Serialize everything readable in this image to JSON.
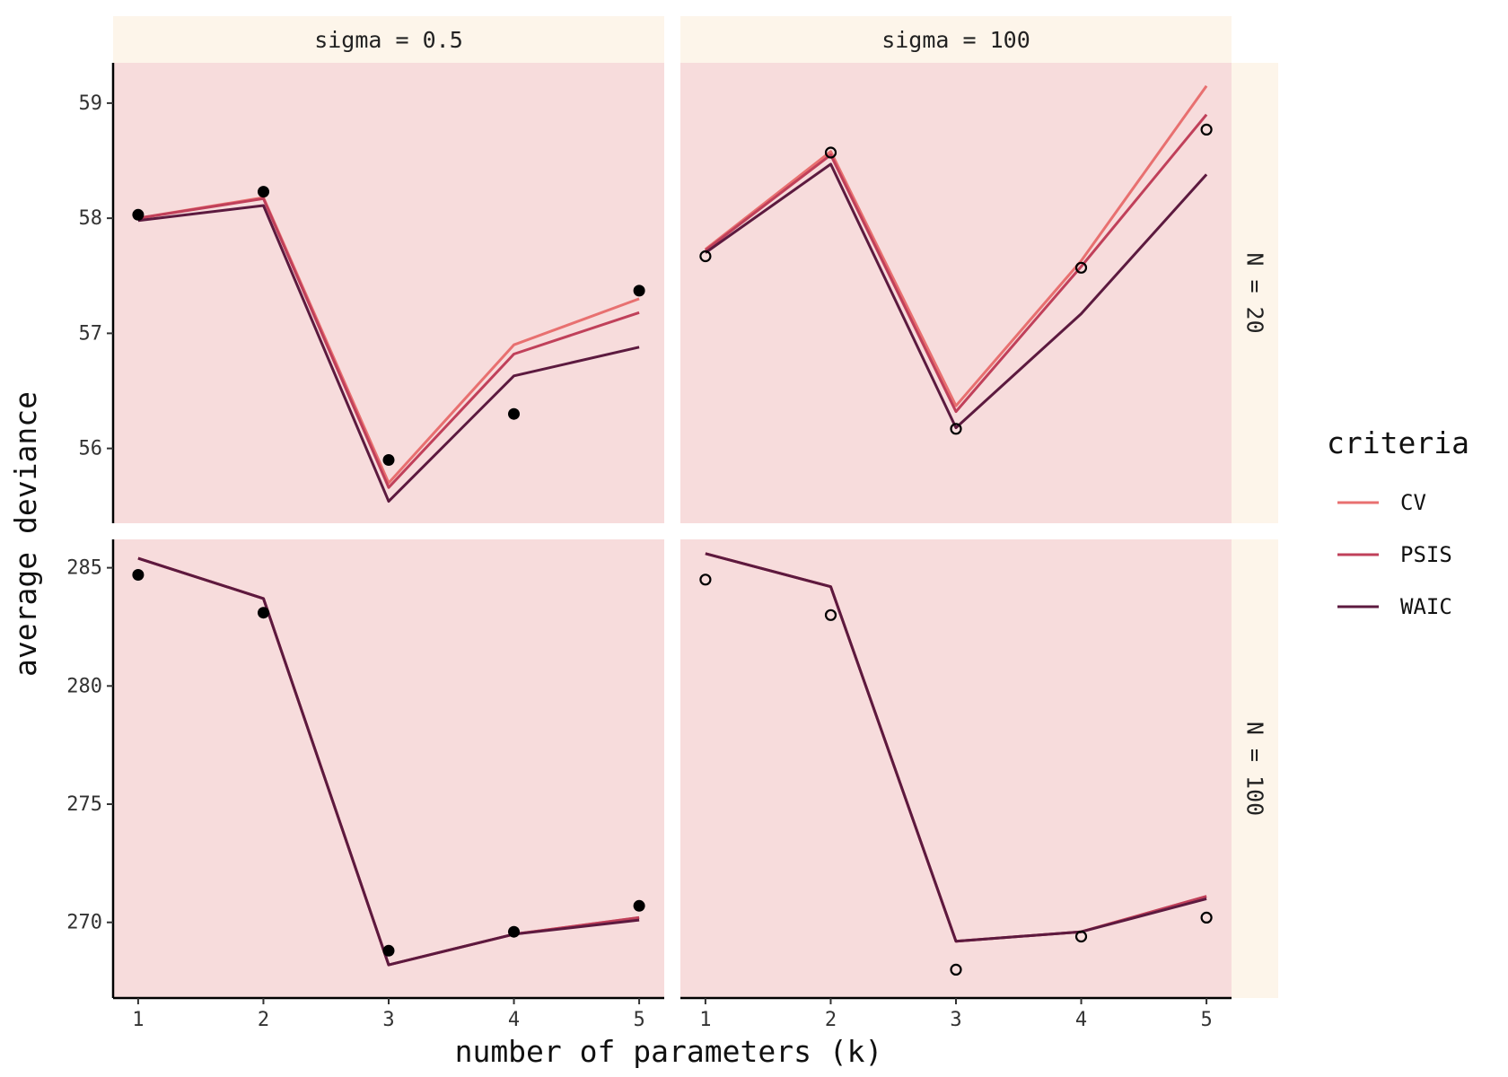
{
  "chart_data": {
    "type": "line",
    "facet_cols": [
      {
        "label": "sigma = 0.5",
        "point_style": "filled"
      },
      {
        "label": "sigma = 100",
        "point_style": "open"
      }
    ],
    "facet_rows": [
      {
        "label": "N = 20",
        "ylim": [
          55.35,
          59.35
        ],
        "yticks": [
          56,
          57,
          58,
          59
        ]
      },
      {
        "label": "N = 100",
        "ylim": [
          266.8,
          286.2
        ],
        "yticks": [
          270,
          275,
          280,
          285
        ]
      }
    ],
    "x": [
      1,
      2,
      3,
      4,
      5
    ],
    "xlim": [
      0.8,
      5.2
    ],
    "xticks": [
      1,
      2,
      3,
      4,
      5
    ],
    "xlabel": "number of parameters (k)",
    "ylabel": "average deviance",
    "legend": {
      "title": "criteria",
      "position": "right"
    },
    "series_colors": {
      "CV": "#e87070",
      "PSIS": "#c0405a",
      "WAIC": "#5c1a3f"
    },
    "series_order": [
      "CV",
      "PSIS",
      "WAIC"
    ],
    "panel_background": "#f7dcdc",
    "strip_background": "#fdf5ea",
    "panels": [
      {
        "row": 0,
        "col": 0,
        "points": [
          58.03,
          58.23,
          55.9,
          56.3,
          57.37
        ],
        "series": [
          {
            "name": "CV",
            "values": [
              58.0,
              58.18,
              55.7,
              56.9,
              57.3
            ]
          },
          {
            "name": "PSIS",
            "values": [
              58.0,
              58.17,
              55.66,
              56.82,
              57.18
            ]
          },
          {
            "name": "WAIC",
            "values": [
              57.98,
              58.11,
              55.54,
              56.63,
              56.88
            ]
          }
        ]
      },
      {
        "row": 0,
        "col": 1,
        "points": [
          57.67,
          58.57,
          56.17,
          57.57,
          58.77
        ],
        "series": [
          {
            "name": "CV",
            "values": [
              57.73,
              58.58,
              56.37,
              57.63,
              59.15
            ]
          },
          {
            "name": "PSIS",
            "values": [
              57.72,
              58.55,
              56.32,
              57.58,
              58.9
            ]
          },
          {
            "name": "WAIC",
            "values": [
              57.7,
              58.47,
              56.18,
              57.17,
              58.38
            ]
          }
        ]
      },
      {
        "row": 1,
        "col": 0,
        "points": [
          284.7,
          283.1,
          268.8,
          269.6,
          270.7
        ],
        "series": [
          {
            "name": "CV",
            "values": [
              285.4,
              283.7,
              268.2,
              269.5,
              270.2
            ]
          },
          {
            "name": "PSIS",
            "values": [
              285.4,
              283.7,
              268.2,
              269.5,
              270.2
            ]
          },
          {
            "name": "WAIC",
            "values": [
              285.4,
              283.7,
              268.2,
              269.5,
              270.1
            ]
          }
        ]
      },
      {
        "row": 1,
        "col": 1,
        "points": [
          284.5,
          283.0,
          268.0,
          269.4,
          270.2
        ],
        "series": [
          {
            "name": "CV",
            "values": [
              285.6,
              284.2,
              269.2,
              269.6,
              271.1
            ]
          },
          {
            "name": "PSIS",
            "values": [
              285.6,
              284.2,
              269.2,
              269.6,
              271.1
            ]
          },
          {
            "name": "WAIC",
            "values": [
              285.6,
              284.2,
              269.2,
              269.6,
              271.0
            ]
          }
        ]
      }
    ]
  }
}
